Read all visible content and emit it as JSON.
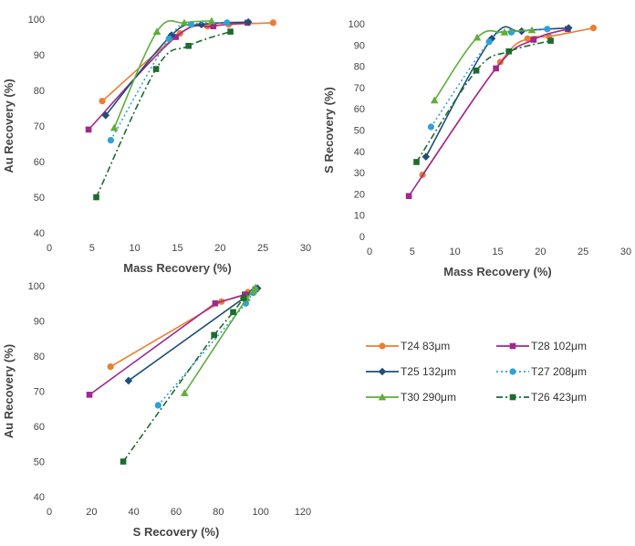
{
  "legend": {
    "entries": [
      {
        "key": "T24",
        "label": "T24  83μm"
      },
      {
        "key": "T28",
        "label": "T28  102μm"
      },
      {
        "key": "T25",
        "label": "T25  132μm"
      },
      {
        "key": "T27",
        "label": "T27  208μm"
      },
      {
        "key": "T30",
        "label": "T30  290μm"
      },
      {
        "key": "T26",
        "label": "T26  423μm"
      }
    ]
  },
  "series_styles": {
    "T24": {
      "color": "#ED7D31",
      "marker": "circle",
      "dash": "solid"
    },
    "T28": {
      "color": "#A0288F",
      "marker": "square",
      "dash": "solid"
    },
    "T25": {
      "color": "#1F4E79",
      "marker": "diamond",
      "dash": "solid"
    },
    "T27": {
      "color": "#2FA0D8",
      "marker": "circle",
      "dash": "dot"
    },
    "T30": {
      "color": "#5DAE3A",
      "marker": "triangle",
      "dash": "solid"
    },
    "T26": {
      "color": "#1E6B30",
      "marker": "square",
      "dash": "dashdot"
    }
  },
  "chart_data": [
    {
      "type": "scatter",
      "title": "",
      "xlabel": "Mass Recovery (%)",
      "ylabel": "Au Recovery (%)",
      "xlim": [
        0,
        30
      ],
      "ylim": [
        40,
        100
      ],
      "xticks": [
        "0",
        "5",
        "10",
        "15",
        "20",
        "25",
        "30"
      ],
      "yticks": [
        "40",
        "50",
        "60",
        "70",
        "80",
        "90",
        "100"
      ],
      "grid": false,
      "series": [
        {
          "name": "T24",
          "x": [
            6.2,
            15.3,
            18.5,
            21.0,
            26.2
          ],
          "y": [
            77,
            96,
            98,
            98.5,
            99
          ]
        },
        {
          "name": "T28",
          "x": [
            4.6,
            14.8,
            19.2,
            23.2
          ],
          "y": [
            69,
            95,
            98,
            99
          ]
        },
        {
          "name": "T25",
          "x": [
            6.6,
            14.3,
            17.8,
            23.3
          ],
          "y": [
            73,
            95.5,
            98.5,
            99.2
          ]
        },
        {
          "name": "T27",
          "x": [
            7.2,
            14.0,
            16.6,
            20.8
          ],
          "y": [
            66,
            94.5,
            98.5,
            99
          ]
        },
        {
          "name": "T30",
          "x": [
            7.6,
            12.6,
            15.8,
            19.0
          ],
          "y": [
            69.5,
            96.5,
            99,
            99.5
          ]
        },
        {
          "name": "T26",
          "x": [
            5.5,
            12.5,
            16.3,
            21.2
          ],
          "y": [
            50,
            86,
            92.5,
            96.5
          ]
        }
      ]
    },
    {
      "type": "scatter",
      "title": "",
      "xlabel": "Mass Recovery (%)",
      "ylabel": "S Recovery (%)",
      "xlim": [
        0,
        30
      ],
      "ylim": [
        0,
        100
      ],
      "xticks": [
        "0",
        "5",
        "10",
        "15",
        "20",
        "25",
        "30"
      ],
      "yticks": [
        "0",
        "10",
        "20",
        "30",
        "40",
        "50",
        "60",
        "70",
        "80",
        "90",
        "100"
      ],
      "grid": false,
      "series": [
        {
          "name": "T24",
          "x": [
            6.2,
            15.3,
            18.5,
            21.0,
            26.2
          ],
          "y": [
            29,
            82,
            93,
            94,
            98
          ]
        },
        {
          "name": "T28",
          "x": [
            4.6,
            14.8,
            19.2,
            23.2
          ],
          "y": [
            19,
            79,
            92.5,
            97.5
          ]
        },
        {
          "name": "T25",
          "x": [
            6.6,
            14.3,
            17.8,
            23.3
          ],
          "y": [
            37.5,
            93,
            96.5,
            98
          ]
        },
        {
          "name": "T27",
          "x": [
            7.2,
            14.0,
            16.6,
            20.8
          ],
          "y": [
            51.5,
            91.5,
            96,
            97.5
          ]
        },
        {
          "name": "T30",
          "x": [
            7.6,
            12.6,
            15.8,
            19.0
          ],
          "y": [
            64,
            93.5,
            96,
            97
          ]
        },
        {
          "name": "T26",
          "x": [
            5.5,
            12.5,
            16.3,
            21.2
          ],
          "y": [
            35,
            78,
            87,
            92
          ]
        }
      ]
    },
    {
      "type": "scatter",
      "title": "",
      "xlabel": "S Recovery (%)",
      "ylabel": "Au Recovery (%)",
      "xlim": [
        0,
        120
      ],
      "ylim": [
        40,
        100
      ],
      "xticks": [
        "0",
        "20",
        "40",
        "60",
        "80",
        "100",
        "120"
      ],
      "yticks": [
        "40",
        "50",
        "60",
        "70",
        "80",
        "90",
        "100"
      ],
      "grid": false,
      "series": [
        {
          "name": "T24",
          "x": [
            29,
            81.5,
            93,
            94,
            98
          ],
          "y": [
            77,
            95.5,
            97.5,
            98.2,
            99
          ]
        },
        {
          "name": "T28",
          "x": [
            19,
            78.5,
            92.5,
            97.5
          ],
          "y": [
            69,
            95,
            97.5,
            99
          ]
        },
        {
          "name": "T25",
          "x": [
            37.5,
            92,
            96.5,
            98.5
          ],
          "y": [
            73,
            96.5,
            98.5,
            99.3
          ]
        },
        {
          "name": "T27",
          "x": [
            51.5,
            93,
            96.5,
            97.5
          ],
          "y": [
            66,
            95,
            98,
            99
          ]
        },
        {
          "name": "T30",
          "x": [
            64,
            93.5,
            96.5,
            97.5
          ],
          "y": [
            69.5,
            96.5,
            98.5,
            99.5
          ]
        },
        {
          "name": "T26",
          "x": [
            35,
            78,
            87,
            92
          ],
          "y": [
            50,
            86,
            92.5,
            96.5
          ]
        }
      ]
    }
  ]
}
